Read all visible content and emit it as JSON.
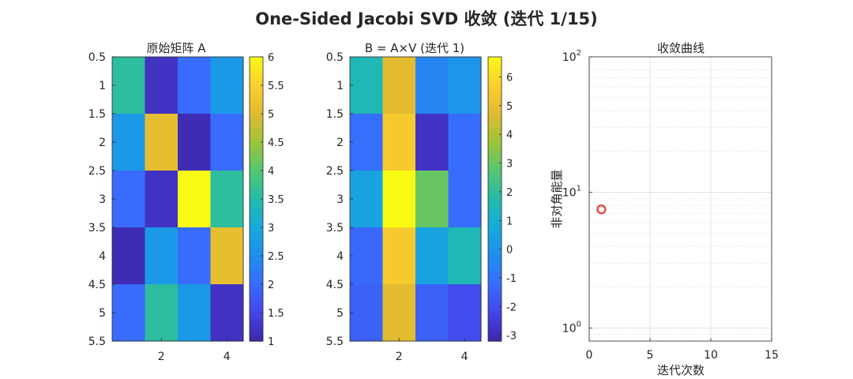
{
  "figure": {
    "title": "One-Sided Jacobi SVD 收敛 (迭代 1/15)"
  },
  "chart_data": [
    {
      "type": "heatmap",
      "title": "原始矩阵 A",
      "x_ticks": [
        "2",
        "4"
      ],
      "y_ticks": [
        "0.5",
        "1",
        "1.5",
        "2",
        "2.5",
        "3",
        "3.5",
        "4",
        "4.5",
        "5",
        "5.5"
      ],
      "colorbar": {
        "range": [
          1,
          6
        ],
        "ticks": [
          "1",
          "1.5",
          "2",
          "2.5",
          "3",
          "3.5",
          "4",
          "4.5",
          "5",
          "5.5",
          "6"
        ]
      },
      "values": [
        [
          3.6,
          1.2,
          2.0,
          2.7
        ],
        [
          2.7,
          5.1,
          1.1,
          2.0
        ],
        [
          2.0,
          1.2,
          6.0,
          3.6
        ],
        [
          1.1,
          2.7,
          2.0,
          5.1
        ],
        [
          2.0,
          3.6,
          2.7,
          1.2
        ]
      ]
    },
    {
      "type": "heatmap",
      "title": "B = A×V (迭代 1)",
      "x_ticks": [
        "2",
        "4"
      ],
      "y_ticks": [
        "0.5",
        "1",
        "1.5",
        "2",
        "2.5",
        "3",
        "3.5",
        "4",
        "4.5",
        "5",
        "5.5"
      ],
      "colorbar": {
        "range": [
          -3.2,
          6.7
        ],
        "ticks": [
          "6",
          "5",
          "4",
          "3",
          "2",
          "1",
          "0",
          "-1",
          "-2",
          "-3"
        ],
        "tick_values": [
          6,
          5,
          4,
          3,
          2,
          1,
          0,
          -1,
          -2,
          -3
        ]
      },
      "values": [
        [
          1.5,
          4.8,
          -0.5,
          0.0
        ],
        [
          -1.1,
          5.5,
          -2.8,
          -1.2
        ],
        [
          0.5,
          6.7,
          3.0,
          -1.2
        ],
        [
          -1.3,
          5.5,
          0.5,
          1.5
        ],
        [
          -1.5,
          4.8,
          -1.5,
          -2.0
        ]
      ]
    },
    {
      "type": "scatter",
      "title": "收敛曲线",
      "xlabel": "迭代次数",
      "ylabel": "非对角能量",
      "x_ticks": [
        "0",
        "5",
        "10",
        "15"
      ],
      "xlim": [
        0,
        15
      ],
      "ylim": [
        0.8,
        100
      ],
      "y_scale": "log",
      "y_ticks": [
        {
          "base": "10",
          "exp": "0"
        },
        {
          "base": "10",
          "exp": "1"
        },
        {
          "base": "10",
          "exp": "2"
        }
      ],
      "grid": true,
      "points": [
        {
          "x": 1,
          "y": 7.5
        }
      ],
      "marker_color": "#e8493b"
    }
  ]
}
